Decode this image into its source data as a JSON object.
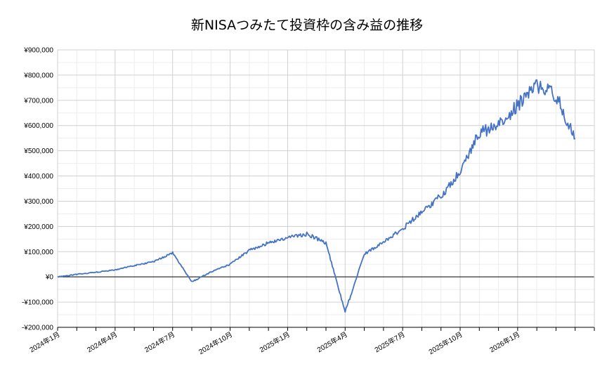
{
  "chart_data": {
    "type": "line",
    "title": "新NISAつみたて投資枠の含み益の推移",
    "xlabel": "",
    "ylabel": "",
    "ylim": [
      -200000,
      900000
    ],
    "y_ticks": [
      -200000,
      -100000,
      0,
      100000,
      200000,
      300000,
      400000,
      500000,
      600000,
      700000,
      800000,
      900000
    ],
    "y_tick_labels": [
      "-¥200,000",
      "-¥100,000",
      "¥0",
      "¥100,000",
      "¥200,000",
      "¥300,000",
      "¥400,000",
      "¥500,000",
      "¥600,000",
      "¥700,000",
      "¥800,000",
      "¥900,000"
    ],
    "x_range": [
      "2024-01",
      "2026-04"
    ],
    "x_ticks": [
      "2024年1月",
      "2024年4月",
      "2024年7月",
      "2024年10月",
      "2025年1月",
      "2025年4月",
      "2025年7月",
      "2025年10月",
      "2026年1月"
    ],
    "grid": true,
    "legend": "none",
    "line_color": "#4472c4",
    "series": [
      {
        "x": [
          "2024-01",
          "2024-02",
          "2024-03",
          "2024-04",
          "2024-05",
          "2024-06",
          "2024-07",
          "2024-08",
          "2024-09",
          "2024-10",
          "2024-11",
          "2024-12",
          "2025-01",
          "2025-02",
          "2025-03",
          "2025-04",
          "2025-05",
          "2025-06",
          "2025-07",
          "2025-08",
          "2025-09",
          "2025-10",
          "2025-11",
          "2025-12",
          "2026-01",
          "2026-02",
          "2026-03",
          "2026-04"
        ],
        "values": [
          0,
          10000,
          18000,
          28000,
          45000,
          60000,
          95000,
          -20000,
          20000,
          50000,
          105000,
          135000,
          155000,
          170000,
          135000,
          -140000,
          90000,
          140000,
          190000,
          260000,
          320000,
          420000,
          570000,
          600000,
          680000,
          760000,
          720000,
          550000
        ]
      }
    ]
  }
}
